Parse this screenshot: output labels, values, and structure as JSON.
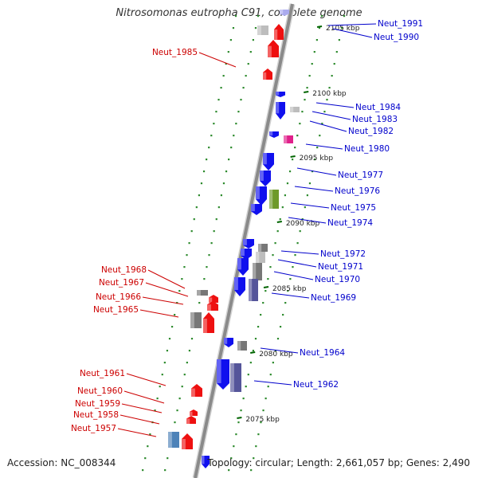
{
  "title": "Nitrosomonas eutropha C91, complete genome",
  "accession": "Accession: NC_008344",
  "summary": "Topology: circular; Length: 2,661,057 bp; Genes: 2,490",
  "colors": {
    "backbone": "#8a8a8a",
    "track_dots": "#2e8b2e",
    "forward_label": "#0000cc",
    "reverse_label": "#cc0000",
    "ticks": "#006400"
  },
  "scale_ticks": [
    {
      "label": "2105 kbp"
    },
    {
      "label": "2100 kbp"
    },
    {
      "label": "2095 kbp"
    },
    {
      "label": "2090 kbp"
    },
    {
      "label": "2085 kbp"
    },
    {
      "label": "2080 kbp"
    },
    {
      "label": "2075 kbp"
    }
  ],
  "labels_right": [
    {
      "text": "Neut_1991"
    },
    {
      "text": "Neut_1990"
    },
    {
      "text": "Neut_1984"
    },
    {
      "text": "Neut_1983"
    },
    {
      "text": "Neut_1982"
    },
    {
      "text": "Neut_1980"
    },
    {
      "text": "Neut_1977"
    },
    {
      "text": "Neut_1976"
    },
    {
      "text": "Neut_1975"
    },
    {
      "text": "Neut_1974"
    },
    {
      "text": "Neut_1972"
    },
    {
      "text": "Neut_1971"
    },
    {
      "text": "Neut_1970"
    },
    {
      "text": "Neut_1969"
    },
    {
      "text": "Neut_1964"
    },
    {
      "text": "Neut_1962"
    }
  ],
  "labels_left": [
    {
      "text": "Neut_1985"
    },
    {
      "text": "Neut_1968"
    },
    {
      "text": "Neut_1967"
    },
    {
      "text": "Neut_1966"
    },
    {
      "text": "Neut_1965"
    },
    {
      "text": "Neut_1961"
    },
    {
      "text": "Neut_1960"
    },
    {
      "text": "Neut_1959"
    },
    {
      "text": "Neut_1958"
    },
    {
      "text": "Neut_1957"
    }
  ]
}
